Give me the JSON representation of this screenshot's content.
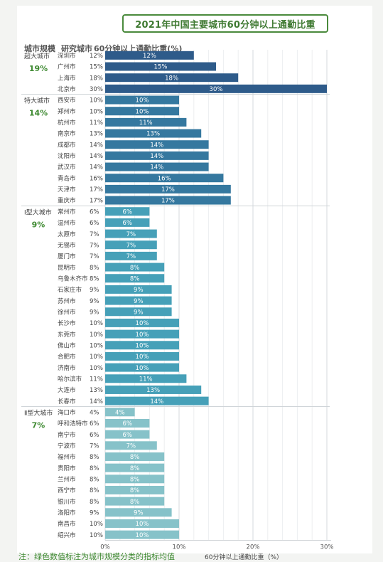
{
  "title": "2021年中国主要城市60分钟以上通勤比重",
  "headers": {
    "group": "城市规模",
    "city": "研究城市",
    "value": "60分钟以上通勤比重(%)"
  },
  "footnote": "注：绿色数值标注为城市规模分类的指标均值",
  "colors": {
    "超大城市": "#2e5b8a",
    "特大城市": "#35789f",
    "Ⅰ型大城市": "#46a0b8",
    "Ⅱ型大城市": "#86c2c9",
    "group_avg": "#3f8a32",
    "divider": "#cfd4d8"
  },
  "chart_data": {
    "type": "bar",
    "orientation": "horizontal",
    "xlabel": "60分钟以上通勤比重（%）",
    "xlim": [
      0,
      30
    ],
    "x_ticks": [
      "0%",
      "10%",
      "20%",
      "30%"
    ],
    "x_tick_values": [
      0,
      10,
      20,
      30
    ],
    "grid": true,
    "groups": [
      {
        "name": "超大城市",
        "avg_label": "19%",
        "cities": [
          "深圳市",
          "广州市",
          "上海市",
          "北京市"
        ],
        "values": [
          12,
          15,
          18,
          30
        ]
      },
      {
        "name": "特大城市",
        "avg_label": "14%",
        "cities": [
          "西安市",
          "郑州市",
          "杭州市",
          "南京市",
          "成都市",
          "沈阳市",
          "武汉市",
          "青岛市",
          "天津市",
          "重庆市"
        ],
        "values": [
          10,
          10,
          11,
          13,
          14,
          14,
          14,
          16,
          17,
          17
        ]
      },
      {
        "name": "Ⅰ型大城市",
        "avg_label": "9%",
        "cities": [
          "常州市",
          "温州市",
          "太原市",
          "无锡市",
          "厦门市",
          "昆明市",
          "乌鲁木齐市",
          "石家庄市",
          "苏州市",
          "徐州市",
          "长沙市",
          "东莞市",
          "佛山市",
          "合肥市",
          "济南市",
          "哈尔滨市",
          "大连市",
          "长春市"
        ],
        "values": [
          6,
          6,
          7,
          7,
          7,
          8,
          8,
          9,
          9,
          9,
          10,
          10,
          10,
          10,
          10,
          11,
          13,
          14
        ]
      },
      {
        "name": "Ⅱ型大城市",
        "avg_label": "7%",
        "cities": [
          "海口市",
          "呼和浩特市",
          "南宁市",
          "宁波市",
          "福州市",
          "贵阳市",
          "兰州市",
          "西宁市",
          "银川市",
          "洛阳市",
          "南昌市",
          "绍兴市"
        ],
        "values": [
          4,
          6,
          6,
          7,
          8,
          8,
          8,
          8,
          8,
          9,
          10,
          10
        ]
      }
    ]
  }
}
